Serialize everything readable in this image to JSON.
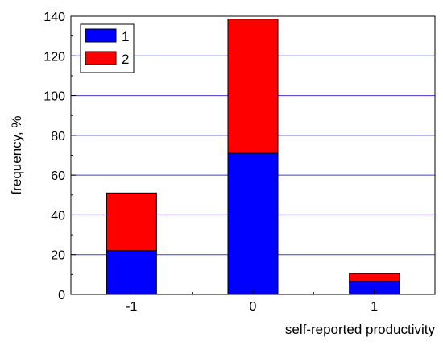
{
  "chart_data": {
    "type": "bar",
    "stacked": true,
    "categories": [
      "-1",
      "0",
      "1"
    ],
    "series": [
      {
        "name": "1",
        "color": "#0000ff",
        "values": [
          22,
          71,
          6.5
        ]
      },
      {
        "name": "2",
        "color": "#ff0000",
        "values": [
          29,
          67.5,
          4
        ]
      }
    ],
    "xlabel": "self-reported productivity",
    "ylabel": "frequency, %",
    "ylim": [
      0,
      140
    ],
    "yticks": [
      "0",
      "20",
      "40",
      "60",
      "80",
      "100",
      "120",
      "140"
    ],
    "grid": true,
    "grid_color": "#3b3bd6",
    "legend_position": "top-left"
  }
}
